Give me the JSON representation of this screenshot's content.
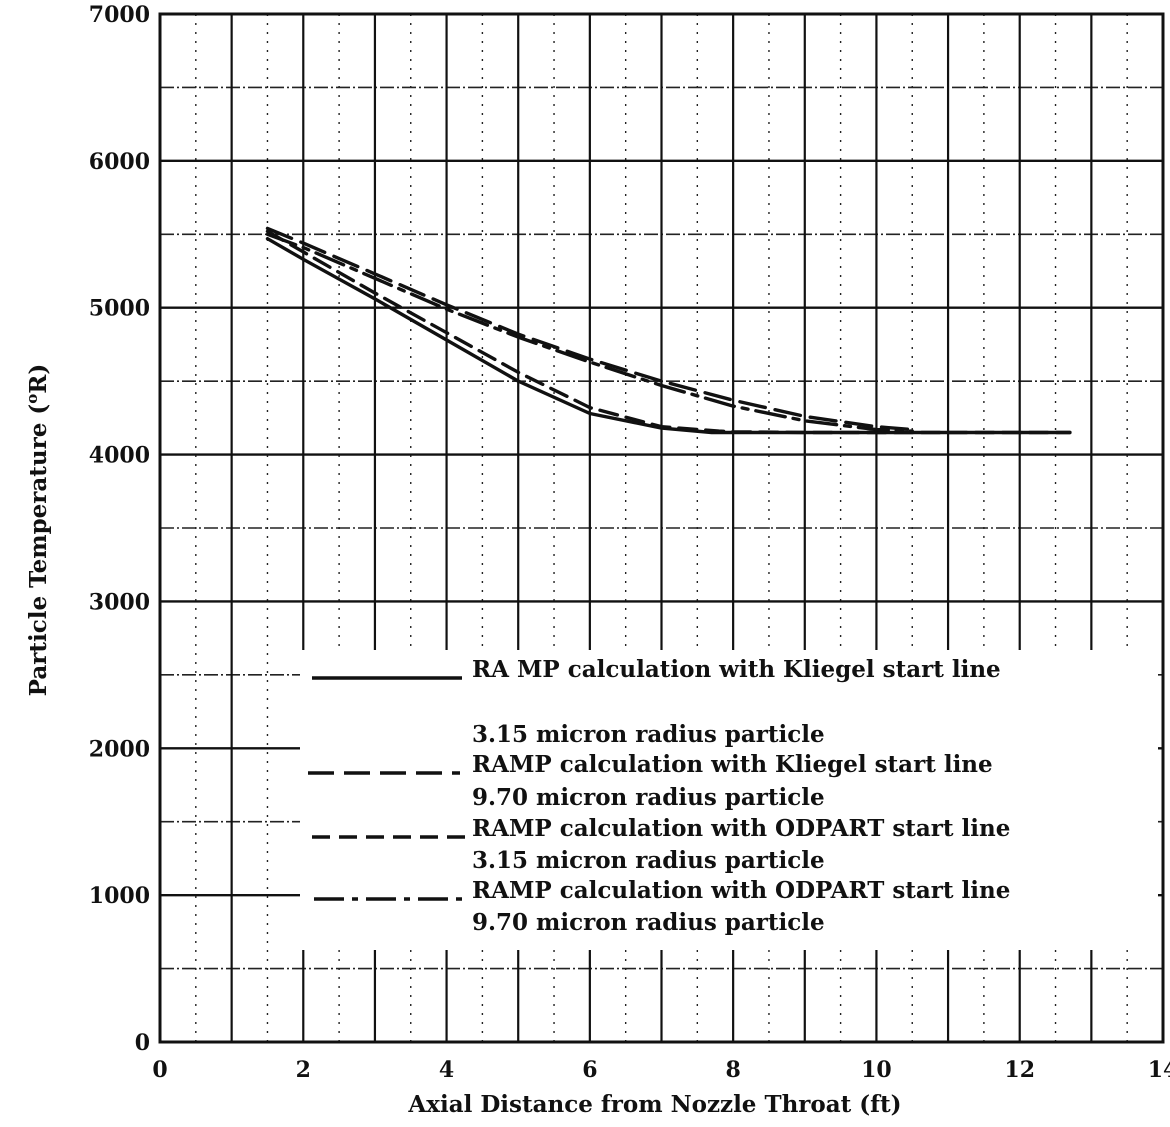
{
  "chart_data": {
    "type": "line",
    "xlabel": "Axial Distance from Nozzle Throat (ft)",
    "ylabel_main": "Particle Temperature (",
    "ylabel_sup": "o",
    "ylabel_tail": "R)",
    "xlim": [
      0,
      14
    ],
    "ylim": [
      0,
      7000
    ],
    "x_ticks": [
      0,
      2,
      4,
      6,
      8,
      10,
      12,
      14
    ],
    "x_tick_labels": [
      "0",
      "2",
      "4",
      "6",
      "8",
      "10",
      "12",
      "14"
    ],
    "y_ticks": [
      0,
      1000,
      2000,
      3000,
      4000,
      5000,
      6000,
      7000
    ],
    "y_tick_labels": [
      "0",
      "1000",
      "2000",
      "3000",
      "4000",
      "5000",
      "6000",
      "7000"
    ],
    "grid": true,
    "legend_position": "lower-right",
    "series": [
      {
        "name": "RA MP calculation with Kliegel start line",
        "name_line2": "3.15 micron radius particle",
        "style": "solid",
        "x": [
          1.5,
          2,
          3,
          4,
          5,
          6,
          7,
          7.7,
          8,
          9,
          10,
          11,
          12,
          12.7
        ],
        "y": [
          5470,
          5330,
          5060,
          4780,
          4500,
          4280,
          4180,
          4150,
          4150,
          4150,
          4150,
          4150,
          4150,
          4150
        ]
      },
      {
        "name": "RAMP calculation with Kliegel start line",
        "name_line2": "9.70 micron radius particle",
        "style": "longdash",
        "x": [
          1.5,
          2,
          3,
          4,
          5,
          6,
          7,
          8,
          9,
          10,
          10.5
        ],
        "y": [
          5540,
          5440,
          5230,
          5020,
          4820,
          4650,
          4500,
          4370,
          4260,
          4190,
          4170
        ]
      },
      {
        "name": "RAMP calculation with ODPART start line",
        "name_line2": "3.15 micron radius particle",
        "style": "dash",
        "x": [
          1.5,
          2,
          3,
          4,
          5,
          6,
          7,
          7.8,
          8,
          9,
          10,
          11,
          12,
          12.7
        ],
        "y": [
          5520,
          5380,
          5100,
          4830,
          4560,
          4320,
          4190,
          4160,
          4155,
          4150,
          4150,
          4150,
          4150,
          4150
        ]
      },
      {
        "name": "RAMP calculation with ODPART start line",
        "name_line2": "9.70 micron radius particle",
        "style": "dashdot",
        "x": [
          1.5,
          2,
          3,
          4,
          5,
          6,
          7,
          8,
          9,
          10,
          10.5
        ],
        "y": [
          5500,
          5410,
          5200,
          4990,
          4800,
          4630,
          4470,
          4330,
          4230,
          4170,
          4160
        ]
      }
    ]
  }
}
